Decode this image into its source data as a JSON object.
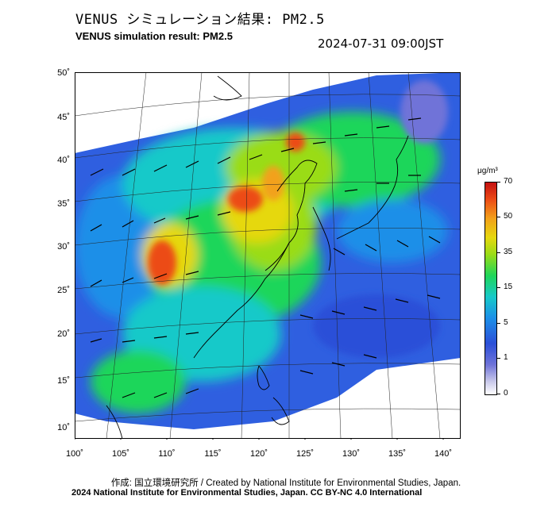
{
  "title_jp": "VENUS シミュレーション結果: PM2.5",
  "title_en": "VENUS simulation result: PM2.5",
  "timestamp": "2024-07-31 09:00JST",
  "colorbar": {
    "unit": "μg/m³",
    "levels": [
      "70",
      "50",
      "35",
      "15",
      "5",
      "1",
      "0"
    ]
  },
  "axes": {
    "lat_labels": [
      "50˚",
      "45˚",
      "40˚",
      "35˚",
      "30˚",
      "25˚",
      "20˚",
      "15˚",
      "10˚"
    ],
    "lon_labels": [
      "100˚",
      "105˚",
      "110˚",
      "115˚",
      "120˚",
      "125˚",
      "130˚",
      "135˚",
      "140˚"
    ]
  },
  "credit": {
    "line1": "作成: 国立環境研究所 / Created by National Institute for Environmental Studies, Japan.",
    "line2": "2024 National Institute for Environmental Studies, Japan. CC BY-NC 4.0 International"
  },
  "colors": {
    "sea_low": "#2b4fd8",
    "low": "#1c8fe8",
    "mid": "#1fd65a",
    "high": "#f2a11a",
    "very_high": "#c41010"
  }
}
